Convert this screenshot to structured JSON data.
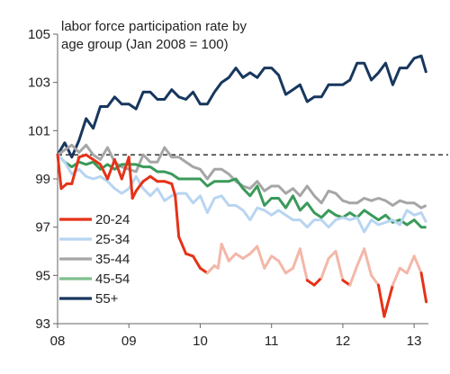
{
  "chart_data": {
    "type": "line",
    "title_lines": [
      "labor force participation  rate by",
      "age group (Jan 2008 = 100)"
    ],
    "xlabel": "",
    "ylabel": "",
    "xlim": [
      2008,
      2013.2
    ],
    "ylim": [
      93,
      105
    ],
    "x_ticks": [
      {
        "value": 2008,
        "label": "08"
      },
      {
        "value": 2009,
        "label": "09"
      },
      {
        "value": 2010,
        "label": "10"
      },
      {
        "value": 2011,
        "label": "11"
      },
      {
        "value": 2012,
        "label": "12"
      },
      {
        "value": 2013,
        "label": "13"
      }
    ],
    "y_ticks": [
      93,
      95,
      97,
      99,
      101,
      103,
      105
    ],
    "reference_line": {
      "y": 100,
      "style": "dashed"
    },
    "legend_position": "bottom-left",
    "series": [
      {
        "name": "55+",
        "color": "#17375e",
        "x": [
          2008.0,
          2008.1,
          2008.2,
          2008.3,
          2008.4,
          2008.5,
          2008.6,
          2008.7,
          2008.8,
          2008.9,
          2009.0,
          2009.1,
          2009.2,
          2009.3,
          2009.4,
          2009.5,
          2009.6,
          2009.7,
          2009.8,
          2009.9,
          2010.0,
          2010.1,
          2010.2,
          2010.3,
          2010.4,
          2010.5,
          2010.6,
          2010.7,
          2010.8,
          2010.9,
          2011.0,
          2011.1,
          2011.2,
          2011.3,
          2011.4,
          2011.5,
          2011.6,
          2011.7,
          2011.8,
          2011.9,
          2012.0,
          2012.1,
          2012.2,
          2012.3,
          2012.4,
          2012.5,
          2012.6,
          2012.7,
          2012.8,
          2012.9,
          2013.0,
          2013.1,
          2013.17
        ],
        "y": [
          100.0,
          100.5,
          99.9,
          100.6,
          101.5,
          101.1,
          102.0,
          102.0,
          102.4,
          102.1,
          102.1,
          101.9,
          102.6,
          102.6,
          102.3,
          102.3,
          102.7,
          102.4,
          102.3,
          102.6,
          102.1,
          102.1,
          102.6,
          103.0,
          103.2,
          103.6,
          103.2,
          103.4,
          103.2,
          103.6,
          103.6,
          103.3,
          102.5,
          102.7,
          102.9,
          102.2,
          102.4,
          102.4,
          102.9,
          102.9,
          102.9,
          103.1,
          103.8,
          103.8,
          103.1,
          103.4,
          103.8,
          102.9,
          103.6,
          103.6,
          104.0,
          104.1,
          103.4
        ]
      },
      {
        "name": "35-44",
        "color": "#a6a6a6",
        "x": [
          2008.0,
          2008.1,
          2008.2,
          2008.3,
          2008.4,
          2008.5,
          2008.6,
          2008.7,
          2008.8,
          2008.9,
          2009.0,
          2009.1,
          2009.2,
          2009.3,
          2009.4,
          2009.5,
          2009.6,
          2009.7,
          2009.8,
          2009.9,
          2010.0,
          2010.1,
          2010.2,
          2010.3,
          2010.4,
          2010.5,
          2010.6,
          2010.7,
          2010.8,
          2010.9,
          2011.0,
          2011.1,
          2011.2,
          2011.3,
          2011.4,
          2011.5,
          2011.6,
          2011.7,
          2011.8,
          2011.9,
          2012.0,
          2012.1,
          2012.2,
          2012.3,
          2012.4,
          2012.5,
          2012.6,
          2012.7,
          2012.8,
          2012.9,
          2013.0,
          2013.1,
          2013.17
        ],
        "y": [
          100.0,
          100.2,
          100.4,
          100.1,
          100.4,
          100.0,
          99.8,
          100.3,
          99.7,
          99.5,
          99.4,
          99.3,
          100.0,
          99.7,
          99.7,
          100.3,
          99.9,
          99.9,
          99.7,
          99.5,
          99.4,
          99.0,
          99.4,
          99.4,
          99.2,
          98.9,
          98.7,
          98.6,
          98.9,
          98.5,
          98.7,
          98.7,
          98.4,
          98.6,
          98.3,
          98.7,
          98.3,
          98.0,
          98.5,
          98.4,
          98.1,
          98.0,
          98.0,
          98.2,
          98.1,
          98.2,
          98.1,
          97.9,
          98.1,
          98.0,
          98.0,
          97.8,
          97.9
        ]
      },
      {
        "name": "45-54",
        "color": "#3a9a5a",
        "x": [
          2008.0,
          2008.1,
          2008.2,
          2008.3,
          2008.4,
          2008.5,
          2008.6,
          2008.7,
          2008.8,
          2008.9,
          2009.0,
          2009.1,
          2009.2,
          2009.3,
          2009.4,
          2009.5,
          2009.6,
          2009.7,
          2009.8,
          2009.9,
          2010.0,
          2010.1,
          2010.2,
          2010.3,
          2010.4,
          2010.5,
          2010.6,
          2010.7,
          2010.8,
          2010.9,
          2011.0,
          2011.1,
          2011.2,
          2011.3,
          2011.4,
          2011.5,
          2011.6,
          2011.7,
          2011.8,
          2011.9,
          2012.0,
          2012.1,
          2012.2,
          2012.3,
          2012.4,
          2012.5,
          2012.6,
          2012.7,
          2012.8,
          2012.9,
          2013.0,
          2013.1,
          2013.17
        ],
        "y": [
          100.0,
          99.7,
          99.5,
          99.7,
          99.6,
          99.7,
          99.4,
          99.6,
          99.4,
          99.6,
          99.6,
          99.6,
          99.5,
          99.5,
          99.3,
          99.3,
          99.2,
          99.0,
          99.0,
          99.0,
          99.0,
          98.7,
          98.9,
          98.9,
          98.9,
          99.0,
          98.6,
          98.3,
          98.7,
          97.9,
          98.2,
          98.2,
          97.8,
          98.3,
          97.7,
          98.0,
          97.6,
          97.4,
          97.7,
          97.5,
          97.4,
          97.6,
          97.4,
          97.7,
          97.5,
          97.3,
          97.5,
          97.2,
          97.3,
          97.1,
          97.3,
          97.0,
          97.0
        ]
      },
      {
        "name": "25-34",
        "color": "#b8d5f2",
        "x": [
          2008.0,
          2008.1,
          2008.2,
          2008.3,
          2008.4,
          2008.5,
          2008.6,
          2008.7,
          2008.8,
          2008.9,
          2009.0,
          2009.1,
          2009.2,
          2009.3,
          2009.4,
          2009.5,
          2009.6,
          2009.7,
          2009.8,
          2009.9,
          2010.0,
          2010.1,
          2010.2,
          2010.3,
          2010.4,
          2010.5,
          2010.6,
          2010.7,
          2010.8,
          2010.9,
          2011.0,
          2011.1,
          2011.2,
          2011.3,
          2011.4,
          2011.5,
          2011.6,
          2011.7,
          2011.8,
          2011.9,
          2012.0,
          2012.1,
          2012.2,
          2012.3,
          2012.4,
          2012.5,
          2012.6,
          2012.7,
          2012.8,
          2012.9,
          2013.0,
          2013.1,
          2013.17
        ],
        "y": [
          100.0,
          99.7,
          99.2,
          99.4,
          99.1,
          99.0,
          99.1,
          98.9,
          98.6,
          98.4,
          98.6,
          99.1,
          98.6,
          98.3,
          98.6,
          98.1,
          98.3,
          98.4,
          98.4,
          98.0,
          98.3,
          97.6,
          98.2,
          98.3,
          97.9,
          97.9,
          97.7,
          97.3,
          97.8,
          97.7,
          97.5,
          97.7,
          97.5,
          97.3,
          97.3,
          97.0,
          97.3,
          97.3,
          97.0,
          97.3,
          97.4,
          97.3,
          97.4,
          96.8,
          97.3,
          97.1,
          97.2,
          97.3,
          97.1,
          97.7,
          97.5,
          97.6,
          97.2
        ]
      },
      {
        "name": "20-24",
        "color_high": "#e53218",
        "color_low": "#f4b7a8",
        "color": "#e53218",
        "x": [
          2008.0,
          2008.05,
          2008.13,
          2008.2,
          2008.3,
          2008.4,
          2008.5,
          2008.6,
          2008.7,
          2008.8,
          2008.9,
          2009.0,
          2009.05,
          2009.1,
          2009.2,
          2009.3,
          2009.4,
          2009.5,
          2009.6,
          2009.65,
          2009.7,
          2009.8,
          2009.9,
          2010.0,
          2010.1,
          2010.2,
          2010.25,
          2010.3,
          2010.4,
          2010.5,
          2010.6,
          2010.7,
          2010.8,
          2010.9,
          2011.0,
          2011.1,
          2011.2,
          2011.3,
          2011.4,
          2011.5,
          2011.6,
          2011.7,
          2011.8,
          2011.9,
          2012.0,
          2012.1,
          2012.2,
          2012.3,
          2012.4,
          2012.5,
          2012.58,
          2012.7,
          2012.8,
          2012.9,
          2013.0,
          2013.1,
          2013.17
        ],
        "y": [
          100.0,
          98.6,
          98.8,
          98.8,
          99.9,
          100.0,
          99.8,
          99.6,
          99.0,
          99.8,
          99.0,
          99.9,
          98.2,
          98.5,
          98.9,
          99.1,
          98.9,
          98.9,
          98.8,
          98.3,
          96.6,
          95.9,
          95.8,
          95.3,
          95.1,
          95.4,
          95.3,
          96.3,
          95.6,
          95.9,
          95.7,
          95.9,
          96.2,
          95.3,
          95.8,
          95.6,
          95.1,
          95.3,
          96.1,
          94.8,
          94.6,
          94.9,
          95.7,
          96.0,
          94.8,
          94.6,
          95.4,
          96.1,
          95.0,
          94.6,
          93.3,
          94.6,
          95.3,
          95.1,
          95.8,
          95.1,
          93.9
        ]
      }
    ],
    "legend": [
      {
        "name": "20-24",
        "color": "#e53218"
      },
      {
        "name": "25-34",
        "color": "#b8d5f2"
      },
      {
        "name": "35-44",
        "color": "#a6a6a6"
      },
      {
        "name": "45-54",
        "color": "#7fbf8c"
      },
      {
        "name": "55+",
        "color": "#17375e"
      }
    ]
  }
}
